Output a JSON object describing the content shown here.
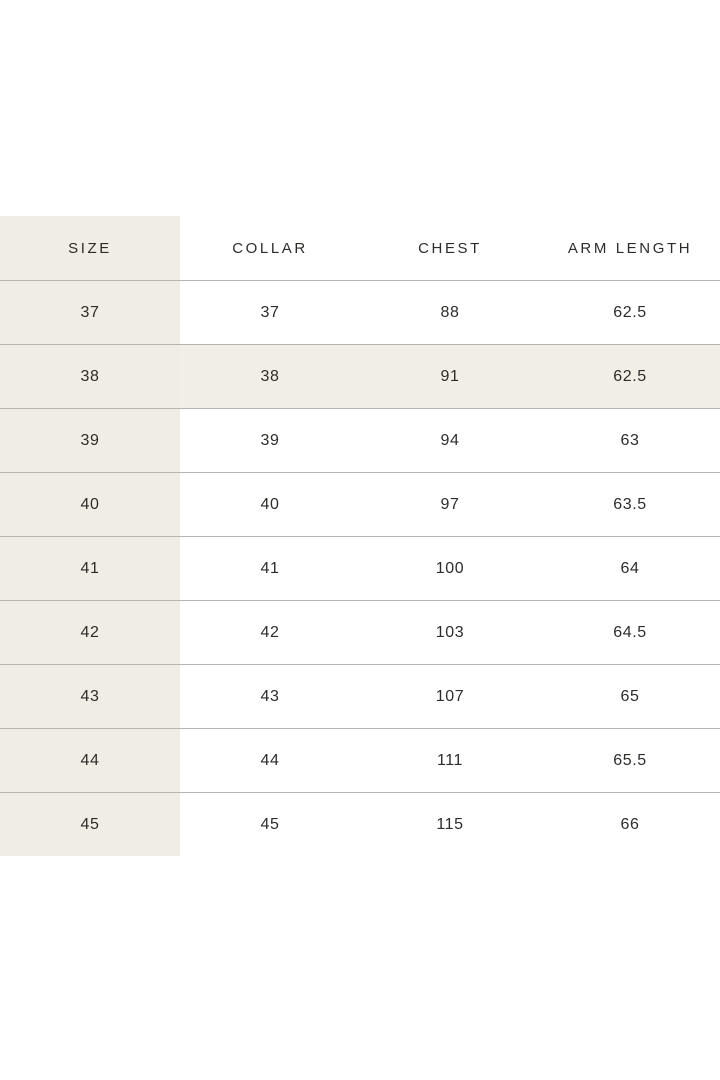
{
  "page": {
    "background": "#ffffff"
  },
  "size_table": {
    "columns": [
      "SIZE",
      "COLLAR",
      "CHEST",
      "ARM LENGTH"
    ],
    "rows": [
      [
        "37",
        "37",
        "88",
        "62.5"
      ],
      [
        "38",
        "38",
        "91",
        "62.5"
      ],
      [
        "39",
        "39",
        "94",
        "63"
      ],
      [
        "40",
        "40",
        "97",
        "63.5"
      ],
      [
        "41",
        "41",
        "100",
        "64"
      ],
      [
        "42",
        "42",
        "103",
        "64.5"
      ],
      [
        "43",
        "43",
        "107",
        "65"
      ],
      [
        "44",
        "44",
        "111",
        "65.5"
      ],
      [
        "45",
        "45",
        "115",
        "66"
      ]
    ],
    "highlighted_row_index": 1,
    "highlighted_size": "38",
    "colors": {
      "first_column_bg": "#f0ede5",
      "highlight_row_bg": "#f1eee6",
      "divider": "#b7b5b0",
      "text": "#2e2c29",
      "background": "#ffffff"
    }
  }
}
